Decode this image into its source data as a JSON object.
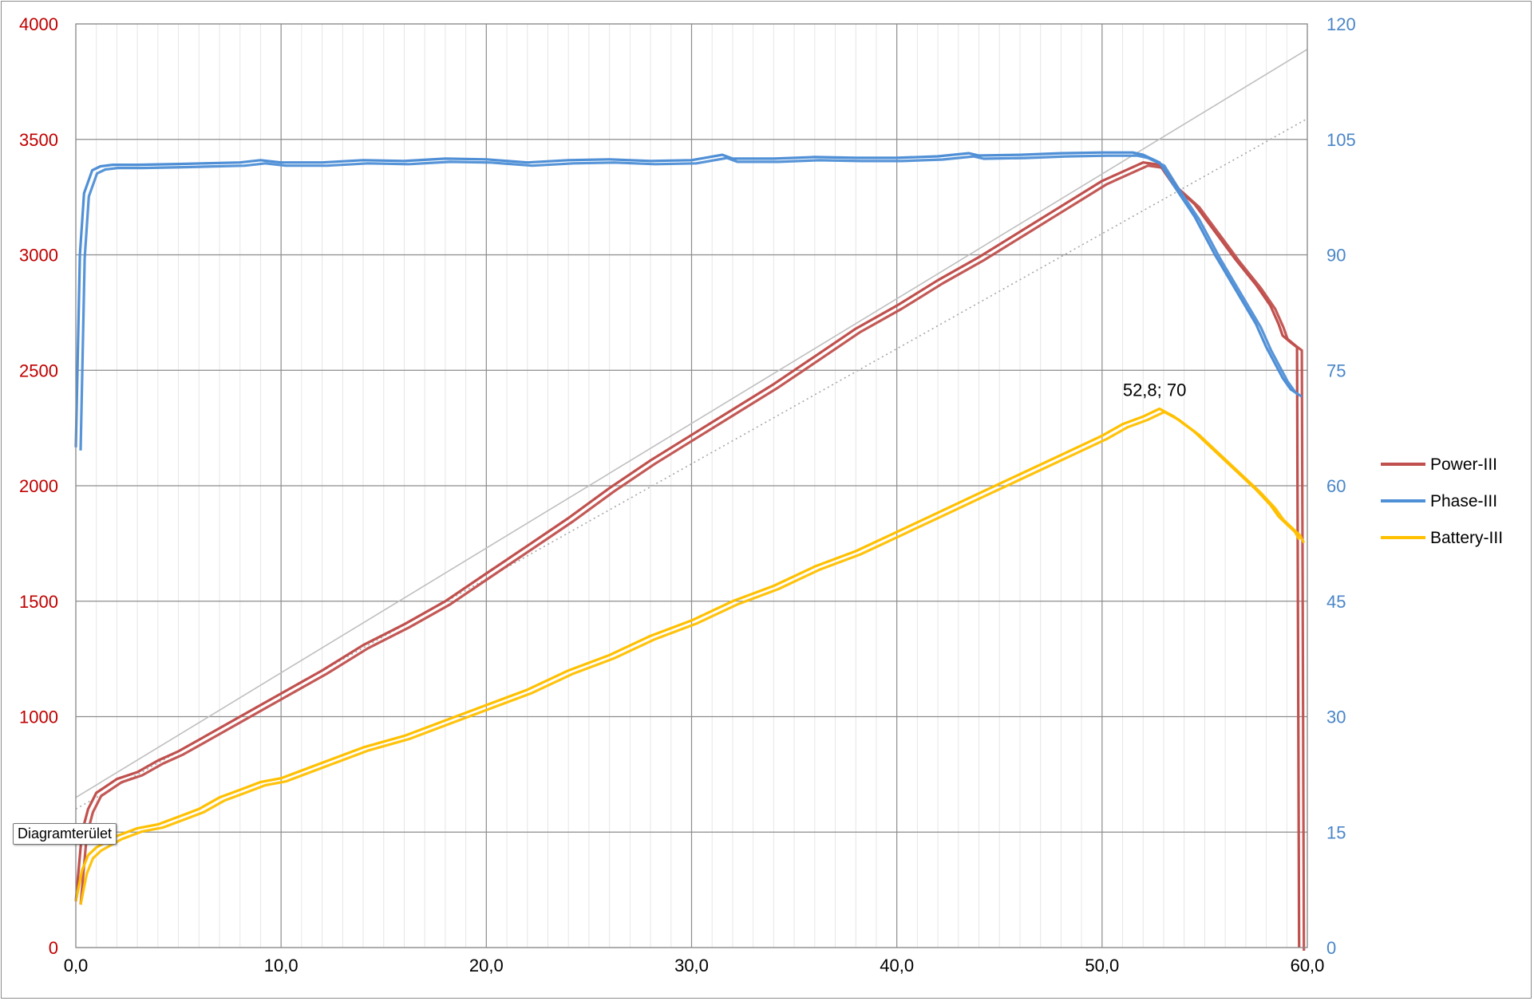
{
  "chart_data": {
    "type": "line",
    "xlim": [
      0,
      60
    ],
    "ylim_left": [
      0,
      4000
    ],
    "ylim_right": [
      0,
      120
    ],
    "x_ticks": [
      "0,0",
      "10,0",
      "20,0",
      "30,0",
      "40,0",
      "50,0",
      "60,0"
    ],
    "y_left_ticks": [
      "0",
      "500",
      "1000",
      "1500",
      "2000",
      "2500",
      "3000",
      "3500",
      "4000"
    ],
    "y_right_ticks": [
      "0",
      "15",
      "30",
      "45",
      "60",
      "75",
      "90",
      "105",
      "120"
    ],
    "grid": true,
    "legend_position": "right",
    "colors": {
      "power": "#c0504d",
      "phase": "#4f8fd6",
      "battery": "#ffc000",
      "left_axis": "#c00000",
      "right_axis": "#4a86c8",
      "trend": "#bfbfbf"
    },
    "series": [
      {
        "name": "Power-III",
        "axis": "left",
        "x": [
          0.0,
          0.3,
          0.6,
          1.0,
          2.0,
          3.0,
          4.0,
          5.0,
          6.0,
          7.0,
          8.0,
          9.0,
          10.0,
          12.0,
          14.0,
          16.0,
          18.0,
          20.0,
          22.0,
          24.0,
          26.0,
          28.0,
          30.0,
          32.0,
          34.0,
          36.0,
          38.0,
          40.0,
          42.0,
          44.0,
          46.0,
          48.0,
          50.0,
          51.0,
          52.0,
          52.8,
          53.5,
          54.5,
          55.5,
          56.5,
          57.5,
          58.2,
          58.6,
          58.8,
          59.2,
          59.5,
          59.6
        ],
        "y": [
          200,
          500,
          600,
          670,
          730,
          760,
          810,
          850,
          900,
          950,
          1000,
          1050,
          1100,
          1200,
          1310,
          1400,
          1500,
          1620,
          1740,
          1860,
          1990,
          2110,
          2220,
          2330,
          2440,
          2560,
          2680,
          2780,
          2890,
          2990,
          3100,
          3210,
          3320,
          3360,
          3400,
          3390,
          3300,
          3220,
          3100,
          2980,
          2870,
          2780,
          2700,
          2650,
          2620,
          2600,
          0
        ]
      },
      {
        "name": "Phase-III",
        "axis": "right",
        "x": [
          0.0,
          0.2,
          0.4,
          0.8,
          1.2,
          1.8,
          3.0,
          5.0,
          8.0,
          9.0,
          10.0,
          12.0,
          14.0,
          16.0,
          18.0,
          20.0,
          22.0,
          24.0,
          26.0,
          28.0,
          30.0,
          31.5,
          32.0,
          34.0,
          36.0,
          38.0,
          40.0,
          42.0,
          43.5,
          44.0,
          46.0,
          48.0,
          50.0,
          51.5,
          52.0,
          52.8,
          53.5,
          54.5,
          55.5,
          56.5,
          57.5,
          58.0,
          58.5,
          58.8,
          59.2,
          59.5
        ],
        "y": [
          65,
          90,
          98,
          101,
          101.5,
          101.7,
          101.7,
          101.8,
          102.0,
          102.3,
          102.0,
          102.0,
          102.3,
          102.2,
          102.5,
          102.4,
          102.0,
          102.3,
          102.4,
          102.2,
          102.3,
          103.0,
          102.5,
          102.5,
          102.7,
          102.6,
          102.6,
          102.8,
          103.2,
          102.9,
          103.0,
          103.2,
          103.3,
          103.3,
          103.0,
          102.0,
          99.0,
          95.0,
          90.0,
          85.5,
          81.0,
          78.0,
          75.5,
          74.0,
          72.5,
          72.0
        ]
      },
      {
        "name": "Battery-III",
        "axis": "right",
        "x": [
          0.0,
          0.3,
          0.6,
          1.0,
          2.0,
          3.0,
          4.0,
          5.0,
          6.0,
          7.0,
          8.0,
          9.0,
          10.0,
          12.0,
          14.0,
          16.0,
          18.0,
          20.0,
          22.0,
          24.0,
          26.0,
          28.0,
          30.0,
          32.0,
          34.0,
          36.0,
          38.0,
          40.0,
          42.0,
          44.0,
          46.0,
          48.0,
          50.0,
          51.0,
          52.0,
          52.8,
          53.5,
          54.5,
          55.5,
          56.5,
          57.5,
          58.2,
          58.6,
          59.0,
          59.4,
          59.6
        ],
        "y": [
          6,
          10,
          12,
          13,
          14.5,
          15.5,
          16.0,
          17.0,
          18.0,
          19.5,
          20.5,
          21.5,
          22.0,
          24.0,
          26.0,
          27.5,
          29.5,
          31.5,
          33.5,
          36.0,
          38.0,
          40.5,
          42.5,
          45.0,
          47.0,
          49.5,
          51.5,
          54.0,
          56.5,
          59.0,
          61.5,
          64.0,
          66.5,
          68.0,
          69.0,
          70.0,
          69.0,
          67.0,
          64.5,
          62.0,
          59.5,
          57.5,
          56.0,
          55.0,
          54.0,
          53.0
        ]
      }
    ],
    "trend_lines": [
      {
        "style": "solid",
        "axis": "left",
        "x": [
          0,
          60
        ],
        "y": [
          650,
          3890
        ]
      },
      {
        "style": "dotted",
        "axis": "left",
        "x": [
          0,
          60
        ],
        "y": [
          600,
          3590
        ]
      }
    ],
    "annotations": [
      {
        "text": "52,8; 70",
        "x": 52.8,
        "y": 70,
        "axis": "right"
      }
    ],
    "legend": [
      "Power-III",
      "Phase-III",
      "Battery-III"
    ]
  },
  "tooltip": {
    "text": "Diagramterület"
  }
}
